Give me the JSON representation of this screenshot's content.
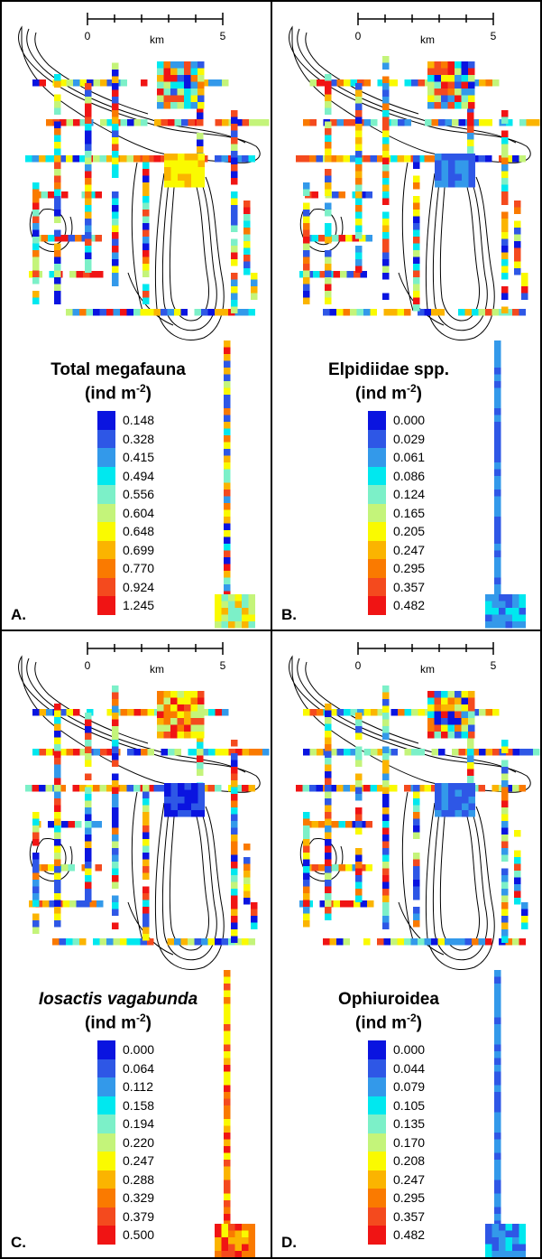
{
  "figure": {
    "panels": [
      {
        "label": "A.",
        "title_main": "Total megafauna",
        "title_unit": "(ind m-2)",
        "title_italic": false,
        "legend_values": [
          "0.148",
          "0.328",
          "0.415",
          "0.494",
          "0.556",
          "0.604",
          "0.648",
          "0.699",
          "0.770",
          "0.924",
          "1.245"
        ],
        "palette": "full"
      },
      {
        "label": "B.",
        "title_main": "Elpidiidae spp.",
        "title_unit": "(ind m-2)",
        "title_italic": false,
        "legend_values": [
          "0.000",
          "0.029",
          "0.061",
          "0.086",
          "0.124",
          "0.165",
          "0.205",
          "0.247",
          "0.295",
          "0.357",
          "0.482"
        ],
        "palette": "blue-box"
      },
      {
        "label": "C.",
        "title_main": "Iosactis vagabunda",
        "title_unit": "(ind m-2)",
        "title_italic": true,
        "legend_values": [
          "0.000",
          "0.064",
          "0.112",
          "0.158",
          "0.194",
          "0.220",
          "0.247",
          "0.288",
          "0.329",
          "0.379",
          "0.500"
        ],
        "palette": "warm-box"
      },
      {
        "label": "D.",
        "title_main": "Ophiuroidea",
        "title_unit": "(ind m-2)",
        "title_italic": false,
        "legend_values": [
          "0.000",
          "0.044",
          "0.079",
          "0.105",
          "0.135",
          "0.170",
          "0.208",
          "0.247",
          "0.295",
          "0.357",
          "0.482"
        ],
        "palette": "blue-box"
      }
    ],
    "scale_bar": {
      "tick_start": "0",
      "tick_end": "5",
      "unit": "km"
    },
    "legend_colors": [
      "#0a14e0",
      "#2e57e6",
      "#3399ea",
      "#00e8ef",
      "#7cf0c8",
      "#c4f47a",
      "#fafa00",
      "#fbb400",
      "#fa7a00",
      "#f44a1e",
      "#f01414"
    ]
  }
}
